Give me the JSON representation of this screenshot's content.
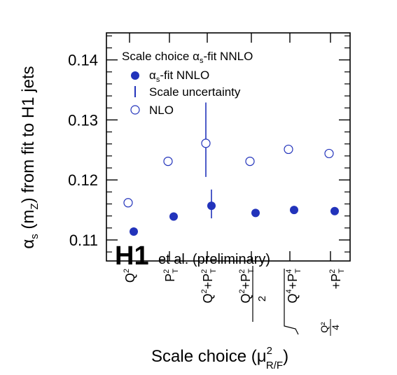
{
  "chart_data": {
    "type": "scatter",
    "legend_title": "Scale choice αs-fit NNLO",
    "watermark": {
      "logo": "H1",
      "text": "et al. (preliminary)"
    },
    "ylabel": "αs (mZ) from fit to H1 jets",
    "xlabel": "Scale choice (μ²R/F)",
    "ylim": [
      0.1065,
      0.1445
    ],
    "yticks": [
      0.11,
      0.12,
      0.13,
      0.14
    ],
    "ytick_labels": [
      "0.11",
      "0.12",
      "0.13",
      "0.14"
    ],
    "categories": [
      "Q²",
      "P²T",
      "Q²+P²T",
      "(Q²+P²T)/2",
      "√(Q⁴+P⁴T)",
      "Q²/4+P²T"
    ],
    "legend_position": "top-left",
    "grid": false,
    "colors": {
      "series": "#2233bb",
      "axes": "#000000"
    },
    "series": [
      {
        "name": "αs-fit NNLO",
        "marker": "filled-circle",
        "values": [
          0.1114,
          0.1139,
          0.1157,
          0.1145,
          0.115,
          0.1148
        ]
      },
      {
        "name": "NLO",
        "marker": "open-circle",
        "values": [
          0.1162,
          0.1231,
          0.1261,
          0.1231,
          0.1251,
          0.1244
        ]
      }
    ],
    "scale_uncertainty": [
      {
        "name": "Scale uncertainty",
        "category": "Q²+P²T",
        "series": "NLO",
        "low": 0.1205,
        "high": 0.1329
      },
      {
        "name": "Scale uncertainty",
        "category": "Q²+P²T",
        "series": "αs-fit NNLO",
        "low": 0.1136,
        "high": 0.1184
      }
    ]
  }
}
